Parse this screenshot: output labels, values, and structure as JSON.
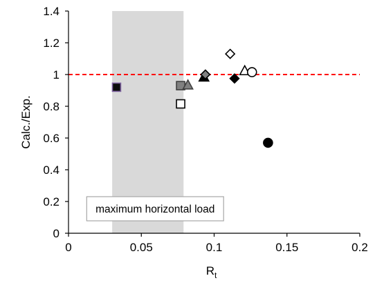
{
  "chart_data": {
    "type": "scatter",
    "xlabel": "R",
    "xlabel_sub": "t",
    "ylabel": "Calc./Exp.",
    "xlim": [
      0,
      0.2
    ],
    "ylim": [
      0,
      1.4
    ],
    "xticks": [
      0,
      0.05,
      0.1,
      0.15,
      0.2
    ],
    "xtick_labels": [
      "0",
      "0.05",
      "0.1",
      "0.15",
      "0.2"
    ],
    "yticks": [
      0,
      0.2,
      0.4,
      0.6,
      0.8,
      1,
      1.2,
      1.4
    ],
    "ytick_labels": [
      "0",
      "0.2",
      "0.4",
      "0.6",
      "0.8",
      "1",
      "1.2",
      "1.4"
    ],
    "grid": false,
    "shaded_band": {
      "x": [
        0.03,
        0.079
      ],
      "color": "#d9d9d9"
    },
    "reference_line": {
      "y": 1,
      "style": "dashed",
      "color": "#ff0000"
    },
    "annotation": "maximum horizontal load",
    "points": [
      {
        "x": 0.033,
        "y": 0.92,
        "marker": "square",
        "fill": "#0d0d0d",
        "stroke": "#8064a2"
      },
      {
        "x": 0.077,
        "y": 0.93,
        "marker": "square",
        "fill": "#808080",
        "stroke": "#404040"
      },
      {
        "x": 0.077,
        "y": 0.815,
        "marker": "square",
        "fill": "#ffffff",
        "stroke": "#000000"
      },
      {
        "x": 0.082,
        "y": 0.935,
        "marker": "triangle",
        "fill": "#808080",
        "stroke": "#404040"
      },
      {
        "x": 0.093,
        "y": 0.985,
        "marker": "triangle",
        "fill": "#000000",
        "stroke": "#000000"
      },
      {
        "x": 0.094,
        "y": 1.0,
        "marker": "diamond",
        "fill": "#808080",
        "stroke": "#000000"
      },
      {
        "x": 0.111,
        "y": 1.13,
        "marker": "diamond",
        "fill": "#ffffff",
        "stroke": "#000000"
      },
      {
        "x": 0.114,
        "y": 0.975,
        "marker": "diamond",
        "fill": "#000000",
        "stroke": "#000000"
      },
      {
        "x": 0.121,
        "y": 1.025,
        "marker": "triangle",
        "fill": "#ffffff",
        "stroke": "#000000"
      },
      {
        "x": 0.126,
        "y": 1.015,
        "marker": "circle",
        "fill": "#ffffff",
        "stroke": "#000000"
      },
      {
        "x": 0.137,
        "y": 0.57,
        "marker": "circle",
        "fill": "#000000",
        "stroke": "#000000"
      }
    ]
  }
}
